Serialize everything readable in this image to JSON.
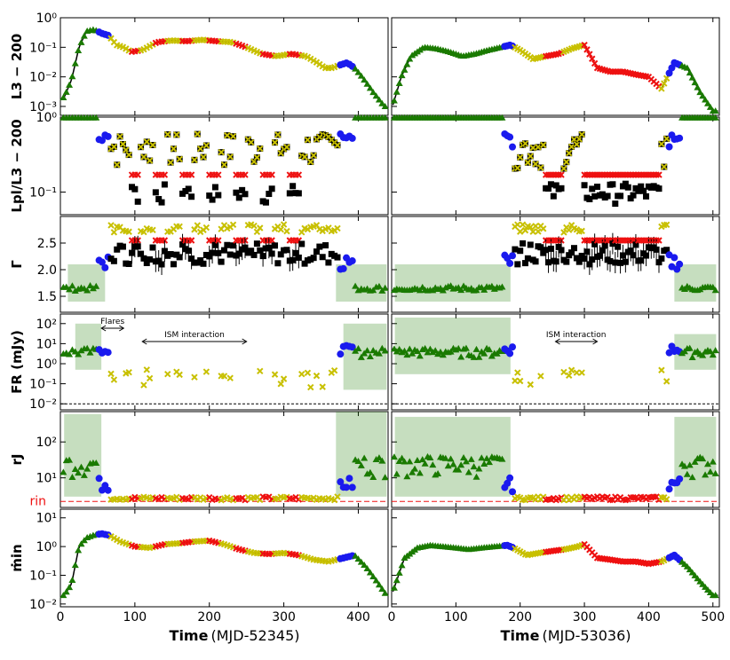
{
  "chart_data": {
    "type": "scatter",
    "columns": [
      {
        "xlabel_bold": "Time",
        "xlabel_rest": "(MJD-52345)",
        "xticks": [
          0,
          100,
          200,
          300,
          400
        ],
        "xlim": [
          0,
          440
        ]
      },
      {
        "xlabel_bold": "Time",
        "xlabel_rest": "(MJD-53036)",
        "xticks": [
          0,
          100,
          200,
          300,
          400,
          500
        ],
        "xlim": [
          0,
          510
        ]
      }
    ],
    "rows": [
      {
        "ylabel": "L3 − 200",
        "yscale": "log",
        "ylim": [
          0.0005,
          1
        ],
        "ytick_labels": [
          "10⁰",
          "10⁻¹",
          "10⁻²",
          "10⁻³"
        ]
      },
      {
        "ylabel": "Lpl/L3 − 200",
        "yscale": "log",
        "ylim": [
          0.05,
          1
        ],
        "ytick_labels": [
          "10⁰",
          "10⁻¹"
        ]
      },
      {
        "ylabel": "Γ",
        "yscale": "linear",
        "ylim": [
          1.2,
          3.0
        ],
        "ytick_labels": [
          "2.5",
          "2.0",
          "1.5"
        ]
      },
      {
        "ylabel": "FR (mJy)",
        "yscale": "log",
        "ylim": [
          0.005,
          300
        ],
        "ytick_labels": [
          "10²",
          "10¹",
          "10⁰",
          "10⁻¹",
          "10⁻²"
        ]
      },
      {
        "ylabel": "rJ",
        "yscale": "log",
        "ylim": [
          1.5,
          700
        ],
        "ytick_labels": [
          "10²",
          "10¹"
        ],
        "extra_label": "rin"
      },
      {
        "ylabel": "ṁin",
        "yscale": "log",
        "ylim": [
          0.008,
          20
        ],
        "ytick_labels": [
          "10¹",
          "10⁰",
          "10⁻¹",
          "10⁻²"
        ]
      }
    ],
    "annotations": {
      "flares": "Flares",
      "ism_left": "ISM interaction",
      "ism_right": "ISM interaction"
    },
    "states": {
      "hard": "#1a7a00",
      "hard_intermediate": "#1a1aee",
      "soft_intermediate": "#c8c000",
      "soft": "#ee1010"
    },
    "series_left": {
      "L": {
        "t": [
          5,
          15,
          25,
          35,
          45,
          55,
          65,
          75,
          85,
          95,
          110,
          130,
          150,
          170,
          190,
          210,
          230,
          250,
          270,
          290,
          310,
          330,
          345,
          355,
          365,
          375,
          385,
          395,
          405,
          420,
          435
        ],
        "v": [
          0.002,
          0.008,
          0.1,
          0.35,
          0.4,
          0.3,
          0.25,
          0.12,
          0.1,
          0.07,
          0.08,
          0.15,
          0.17,
          0.16,
          0.18,
          0.16,
          0.15,
          0.1,
          0.06,
          0.05,
          0.06,
          0.05,
          0.03,
          0.02,
          0.02,
          0.025,
          0.03,
          0.02,
          0.01,
          0.003,
          0.001
        ]
      },
      "mdot": {
        "t": [
          5,
          15,
          25,
          35,
          45,
          55,
          65,
          80,
          100,
          120,
          140,
          160,
          180,
          200,
          220,
          240,
          260,
          280,
          300,
          320,
          340,
          360,
          380,
          395,
          410,
          425,
          438
        ],
        "v": [
          0.02,
          0.05,
          1,
          2,
          2.5,
          2.8,
          2.5,
          1.5,
          1,
          0.9,
          1.2,
          1.3,
          1.5,
          1.6,
          1.2,
          0.8,
          0.6,
          0.55,
          0.6,
          0.5,
          0.35,
          0.3,
          0.4,
          0.5,
          0.2,
          0.06,
          0.02
        ]
      }
    },
    "series_right": {
      "L": {
        "t": [
          0,
          15,
          30,
          50,
          70,
          90,
          110,
          130,
          150,
          170,
          185,
          200,
          220,
          240,
          260,
          280,
          300,
          320,
          340,
          360,
          380,
          400,
          420,
          440,
          460,
          480,
          500
        ],
        "v": [
          0.0008,
          0.01,
          0.05,
          0.1,
          0.09,
          0.07,
          0.05,
          0.06,
          0.08,
          0.1,
          0.12,
          0.08,
          0.04,
          0.05,
          0.06,
          0.09,
          0.12,
          0.02,
          0.015,
          0.015,
          0.012,
          0.01,
          0.004,
          0.03,
          0.02,
          0.003,
          0.0007
        ]
      },
      "mdot": {
        "t": [
          0,
          20,
          40,
          60,
          80,
          100,
          120,
          140,
          160,
          180,
          190,
          210,
          230,
          250,
          270,
          290,
          300,
          320,
          340,
          360,
          380,
          400,
          420,
          440,
          460,
          480,
          500
        ],
        "v": [
          0.02,
          0.4,
          0.9,
          1.1,
          1.0,
          0.9,
          0.8,
          0.9,
          1.0,
          1.1,
          0.9,
          0.5,
          0.6,
          0.7,
          0.8,
          1.0,
          1.2,
          0.4,
          0.35,
          0.3,
          0.3,
          0.25,
          0.3,
          0.5,
          0.2,
          0.06,
          0.02
        ]
      }
    }
  }
}
